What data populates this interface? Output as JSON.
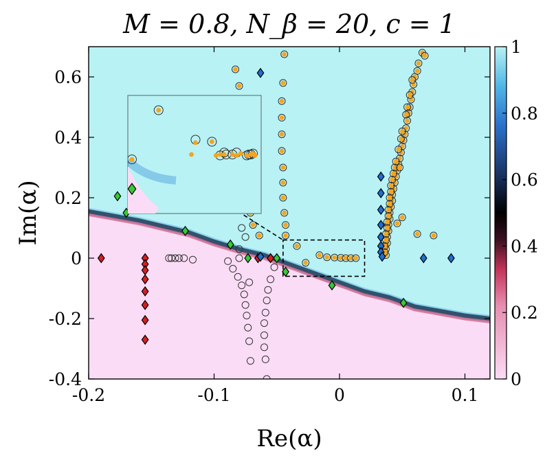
{
  "chart_data": {
    "type": "scatter",
    "title": "M = 0.8, N_β = 20, c = 1",
    "xlabel": "Re(α)",
    "ylabel": "Im(α)",
    "xlim": [
      -0.2,
      0.12
    ],
    "ylim": [
      -0.4,
      0.7
    ],
    "xticks": [
      -0.2,
      -0.1,
      0,
      0.1
    ],
    "xtick_labels": [
      "-0.2",
      "-0.1",
      "0",
      "0.1"
    ],
    "yticks": [
      -0.4,
      -0.2,
      0,
      0.2,
      0.4,
      0.6
    ],
    "ytick_labels": [
      "-0.4",
      "-0.2",
      "0",
      "0.2",
      "0.4",
      "0.6"
    ],
    "colorbar": {
      "range": [
        0,
        1
      ],
      "ticks": [
        0,
        0.2,
        0.4,
        0.6,
        0.8,
        1
      ],
      "tick_labels": [
        "0",
        "0.2",
        "0.4",
        "0.6",
        "0.8",
        "1"
      ],
      "colormap": [
        "#fbdcf6",
        "#c3345a",
        "#000000",
        "#2a6fc9",
        "#b8f2f4"
      ]
    },
    "background": {
      "description_free": true,
      "boundary_x": [
        -0.2,
        -0.18,
        -0.16,
        -0.14,
        -0.12,
        -0.1,
        -0.08,
        -0.06,
        -0.04,
        -0.02,
        0.0,
        0.02,
        0.04,
        0.06,
        0.08,
        0.1,
        0.12
      ],
      "boundary_y": [
        0.155,
        0.14,
        0.125,
        0.105,
        0.085,
        0.055,
        0.03,
        0.01,
        -0.02,
        -0.05,
        -0.08,
        -0.11,
        -0.13,
        -0.16,
        -0.175,
        -0.19,
        -0.2
      ]
    },
    "inset_box": {
      "x": [
        -0.045,
        0.02
      ],
      "y": [
        -0.06,
        0.06
      ]
    },
    "inset_lines": [
      {
        "from": [
          -0.081,
          0.155
        ],
        "to": [
          -0.045,
          0.06
        ]
      }
    ],
    "inset": {
      "xlim": [
        -0.045,
        0.02
      ],
      "ylim": [
        -0.06,
        0.06
      ],
      "points_open": [
        {
          "x": -0.03,
          "y": 0.045
        },
        {
          "x": -0.043,
          "y": -0.005
        },
        {
          "x": -0.012,
          "y": 0.015
        },
        {
          "x": -0.004,
          "y": 0.013
        },
        {
          "x": 0.006,
          "y": 0.0
        },
        {
          "x": 0.008,
          "y": 0.002
        },
        {
          "x": 0.013,
          "y": -0.001
        },
        {
          "x": 0.016,
          "y": 0.001
        },
        {
          "x": 0.002,
          "y": 0.002
        },
        {
          "x": 0.0,
          "y": -0.001
        },
        {
          "x": 0.003,
          "y": 0.0
        },
        {
          "x": 0.014,
          "y": 0.0
        },
        {
          "x": 0.015,
          "y": 0.0
        }
      ],
      "points_filled": [
        {
          "x": -0.03,
          "y": 0.045
        },
        {
          "x": -0.043,
          "y": -0.005
        },
        {
          "x": -0.012,
          "y": 0.012
        },
        {
          "x": -0.014,
          "y": 0.0
        },
        {
          "x": -0.004,
          "y": 0.013
        },
        {
          "x": -0.002,
          "y": -0.001
        },
        {
          "x": 0.0,
          "y": 0.0
        },
        {
          "x": 0.002,
          "y": 0.0
        },
        {
          "x": 0.006,
          "y": 0.0
        },
        {
          "x": 0.008,
          "y": -0.001
        },
        {
          "x": 0.01,
          "y": 0.001
        },
        {
          "x": 0.013,
          "y": -0.001
        },
        {
          "x": 0.015,
          "y": 0.0
        },
        {
          "x": 0.016,
          "y": 0.001
        },
        {
          "x": 0.017,
          "y": -0.001
        }
      ],
      "diamonds": [
        {
          "x": -0.043,
          "y": -0.035,
          "color": "#38c934"
        }
      ]
    },
    "series": [
      {
        "marker": "open-circle",
        "points": [
          [
            -0.136,
            0.0
          ],
          [
            -0.134,
            0.0
          ],
          [
            -0.131,
            0.0
          ],
          [
            -0.128,
            0.0
          ],
          [
            -0.124,
            0.0
          ],
          [
            -0.117,
            -0.005
          ],
          [
            -0.089,
            -0.01
          ],
          [
            -0.085,
            -0.035
          ],
          [
            -0.081,
            -0.062
          ],
          [
            -0.078,
            -0.09
          ],
          [
            -0.076,
            -0.12
          ],
          [
            -0.075,
            -0.155
          ],
          [
            -0.074,
            -0.19
          ],
          [
            -0.073,
            -0.23
          ],
          [
            -0.072,
            -0.275
          ],
          [
            -0.071,
            -0.34
          ],
          [
            -0.072,
            -0.08
          ],
          [
            -0.075,
            0.07
          ],
          [
            -0.078,
            0.1
          ],
          [
            -0.052,
            -0.03
          ],
          [
            -0.055,
            -0.07
          ],
          [
            -0.057,
            -0.105
          ],
          [
            -0.058,
            -0.14
          ],
          [
            -0.059,
            -0.18
          ],
          [
            -0.06,
            -0.215
          ],
          [
            -0.06,
            -0.255
          ],
          [
            -0.06,
            -0.295
          ],
          [
            -0.059,
            -0.335
          ],
          [
            -0.058,
            -0.4
          ],
          [
            -0.08,
            0.0
          ],
          [
            -0.08,
            0.03
          ]
        ]
      },
      {
        "marker": "orange-circle",
        "points": [
          [
            -0.083,
            0.625
          ],
          [
            -0.08,
            0.57
          ],
          [
            -0.079,
            0.515
          ],
          [
            -0.078,
            0.46
          ],
          [
            -0.077,
            0.405
          ],
          [
            -0.076,
            0.35
          ],
          [
            -0.075,
            0.295
          ],
          [
            -0.074,
            0.245
          ],
          [
            -0.073,
            0.195
          ],
          [
            -0.071,
            0.15
          ],
          [
            -0.069,
            0.11
          ],
          [
            -0.064,
            0.075
          ],
          [
            -0.044,
            0.675
          ],
          [
            -0.045,
            0.58
          ],
          [
            -0.046,
            0.52
          ],
          [
            -0.046,
            0.465
          ],
          [
            -0.046,
            0.41
          ],
          [
            -0.046,
            0.355
          ],
          [
            -0.045,
            0.3
          ],
          [
            -0.045,
            0.25
          ],
          [
            -0.045,
            0.2
          ],
          [
            -0.044,
            0.15
          ],
          [
            -0.043,
            0.11
          ],
          [
            -0.043,
            0.075
          ],
          [
            -0.034,
            0.04
          ],
          [
            -0.027,
            -0.015
          ],
          [
            -0.016,
            0.01
          ],
          [
            -0.01,
            0.003
          ],
          [
            -0.004,
            0.002
          ],
          [
            0.001,
            0.001
          ],
          [
            0.005,
            0.0
          ],
          [
            0.009,
            0.0
          ],
          [
            0.013,
            0.0
          ],
          [
            0.066,
            0.68
          ],
          [
            0.068,
            0.67
          ],
          [
            0.063,
            0.645
          ],
          [
            0.062,
            0.62
          ],
          [
            0.06,
            0.6
          ],
          [
            0.059,
            0.575
          ],
          [
            0.058,
            0.55
          ],
          [
            0.057,
            0.525
          ],
          [
            0.056,
            0.5
          ],
          [
            0.055,
            0.48
          ],
          [
            0.054,
            0.455
          ],
          [
            0.053,
            0.43
          ],
          [
            0.052,
            0.41
          ],
          [
            0.051,
            0.39
          ],
          [
            0.05,
            0.37
          ],
          [
            0.049,
            0.35
          ],
          [
            0.048,
            0.33
          ],
          [
            0.047,
            0.31
          ],
          [
            0.046,
            0.29
          ],
          [
            0.045,
            0.27
          ],
          [
            0.044,
            0.25
          ],
          [
            0.043,
            0.23
          ],
          [
            0.042,
            0.21
          ],
          [
            0.042,
            0.19
          ],
          [
            0.041,
            0.17
          ],
          [
            0.04,
            0.15
          ],
          [
            0.04,
            0.13
          ],
          [
            0.039,
            0.11
          ],
          [
            0.039,
            0.09
          ],
          [
            0.038,
            0.07
          ],
          [
            0.038,
            0.05
          ],
          [
            0.037,
            0.03
          ],
          [
            0.037,
            0.01
          ],
          [
            0.058,
            0.59
          ],
          [
            0.056,
            0.54
          ],
          [
            0.054,
            0.5
          ],
          [
            0.053,
            0.475
          ],
          [
            0.05,
            0.42
          ],
          [
            0.049,
            0.395
          ],
          [
            0.047,
            0.36
          ],
          [
            0.045,
            0.32
          ],
          [
            0.044,
            0.3
          ],
          [
            0.043,
            0.28
          ],
          [
            0.042,
            0.26
          ],
          [
            0.041,
            0.24
          ],
          [
            0.041,
            0.22
          ],
          [
            0.04,
            0.2
          ],
          [
            0.04,
            0.18
          ],
          [
            0.039,
            0.16
          ],
          [
            0.039,
            0.14
          ],
          [
            0.038,
            0.12
          ],
          [
            0.038,
            0.1
          ],
          [
            0.037,
            0.08
          ],
          [
            0.037,
            0.06
          ],
          [
            0.036,
            0.04
          ],
          [
            0.036,
            0.02
          ],
          [
            0.046,
            0.115
          ],
          [
            0.05,
            0.135
          ],
          [
            0.062,
            0.08
          ],
          [
            0.075,
            0.075
          ],
          [
            0.048,
            0.3
          ]
        ]
      },
      {
        "marker": "red-diamond",
        "points": [
          [
            -0.19,
            0.0
          ],
          [
            -0.155,
            0.0
          ],
          [
            -0.155,
            -0.02
          ],
          [
            -0.155,
            -0.04
          ],
          [
            -0.155,
            -0.07
          ],
          [
            -0.155,
            -0.11
          ],
          [
            -0.155,
            -0.155
          ],
          [
            -0.155,
            -0.205
          ],
          [
            -0.155,
            -0.27
          ],
          [
            -0.055,
            0.0
          ],
          [
            -0.065,
            0.0
          ]
        ]
      },
      {
        "marker": "green-diamond",
        "points": [
          [
            -0.177,
            0.205
          ],
          [
            -0.17,
            0.15
          ],
          [
            -0.123,
            0.09
          ],
          [
            -0.087,
            0.045
          ],
          [
            -0.073,
            0.0
          ],
          [
            -0.05,
            0.0
          ],
          [
            -0.043,
            -0.045
          ],
          [
            -0.006,
            -0.09
          ],
          [
            0.051,
            -0.148
          ]
        ]
      },
      {
        "marker": "blue-diamond",
        "points": [
          [
            -0.063,
            0.613
          ],
          [
            -0.063,
            0.005
          ],
          [
            0.033,
            0.27
          ],
          [
            0.033,
            0.215
          ],
          [
            0.033,
            0.16
          ],
          [
            0.033,
            0.11
          ],
          [
            0.033,
            0.07
          ],
          [
            0.033,
            0.04
          ],
          [
            0.033,
            0.02
          ],
          [
            0.034,
            0.005
          ],
          [
            0.067,
            0.0
          ],
          [
            0.089,
            0.0
          ]
        ]
      }
    ]
  }
}
